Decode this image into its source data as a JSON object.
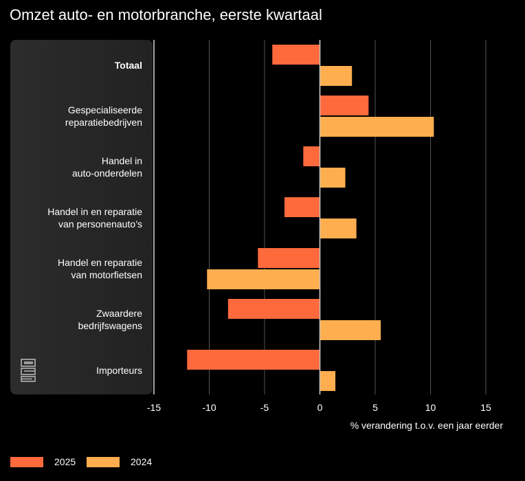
{
  "chart_data": {
    "type": "bar",
    "orientation": "horizontal",
    "title": "Omzet auto- en motorbranche, eerste kwartaal",
    "xlabel": "% verandering t.o.v. een jaar eerder",
    "ylabel": "",
    "xlim": [
      -15,
      15
    ],
    "xticks": [
      "-15",
      "-10",
      "-5",
      "0",
      "5",
      "10",
      "15"
    ],
    "categories": [
      {
        "line1": "",
        "line2": "Totaal",
        "bold": true
      },
      {
        "line1": "Gespecialiseerde",
        "line2": "reparatiebedrijven",
        "bold": false
      },
      {
        "line1": "Handel in",
        "line2": "auto-onderdelen",
        "bold": false
      },
      {
        "line1": "Handel in en reparatie",
        "line2": "van personenauto’s",
        "bold": false
      },
      {
        "line1": "Handel en reparatie",
        "line2": "van motorfietsen",
        "bold": false
      },
      {
        "line1": "Zwaardere",
        "line2": "bedrijfswagens",
        "bold": false
      },
      {
        "line1": "",
        "line2": "Importeurs",
        "bold": false
      }
    ],
    "series": [
      {
        "name": "2025",
        "color": "#ff6a3d",
        "values": [
          -4.3,
          4.4,
          -1.5,
          -3.2,
          -5.6,
          -8.3,
          -12.0
        ]
      },
      {
        "name": "2024",
        "color": "#ffae4f",
        "values": [
          2.9,
          10.3,
          2.3,
          3.3,
          -10.2,
          5.5,
          1.4
        ]
      }
    ],
    "grid": true,
    "legend_position": "bottom-left"
  },
  "logo": {
    "name": "cbs"
  }
}
